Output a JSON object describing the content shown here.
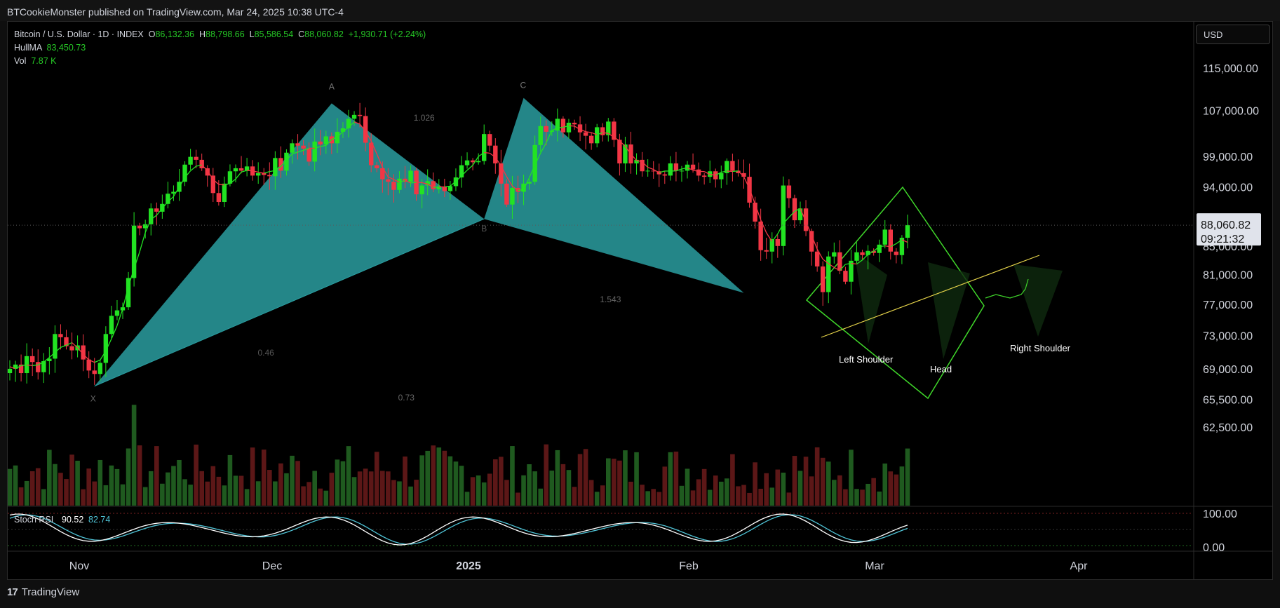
{
  "header": {
    "publisher_line": "BTCookieMonster published on TradingView.com, Mar 24, 2025 10:38 UTC-4"
  },
  "legend": {
    "symbol": "Bitcoin / U.S. Dollar · 1D · INDEX",
    "open_label": "O",
    "open": "86,132.36",
    "high_label": "H",
    "high": "88,798.66",
    "low_label": "L",
    "low": "85,586.54",
    "close_label": "C",
    "close": "88,060.82",
    "change": "+1,930.71 (+2.24%)",
    "hullma_label": "HullMA",
    "hullma": "83,450.73",
    "vol_label": "Vol",
    "vol": "7.87 K"
  },
  "currency": "USD",
  "price_badge": {
    "price": "88,060.82",
    "countdown": "09:21:32"
  },
  "stoch_rsi": {
    "label": "Stoch RSI",
    "k": "90.52",
    "d": "82.74",
    "levels": [
      "100.00",
      "0.00"
    ]
  },
  "footer": {
    "brand": "TradingView",
    "logo": "tradingview-logo-icon"
  },
  "colors": {
    "up": "#22e322",
    "down": "#f23645",
    "harmonic": "#2a9da0",
    "hs": "#3fd62a",
    "trendline": "#e6d44a",
    "rsi_k": "#ffffff",
    "rsi_d": "#4fc3d6"
  },
  "annotations": {
    "points": [
      "X",
      "A",
      "B",
      "C"
    ],
    "ratios": [
      "1.026",
      "0.46",
      "0.73",
      "1.543"
    ],
    "pattern_labels": [
      "Left Shoulder",
      "Head",
      "Right Shoulder"
    ]
  },
  "chart_data": {
    "type": "candlestick",
    "title": "",
    "y_axis_labels": [
      "115,000.00",
      "107,000.00",
      "99,000.00",
      "94,000.00",
      "88,000.00",
      "85,000.00",
      "81,000.00",
      "77,000.00",
      "73,000.00",
      "69,000.00",
      "65,500.00",
      "62,500.00"
    ],
    "x_axis_labels": [
      "Nov",
      "Dec",
      "2025",
      "Feb",
      "Mar",
      "Apr"
    ],
    "ylim": [
      61800,
      119000
    ],
    "close_series_approx": [
      69000,
      69500,
      68500,
      70500,
      69800,
      68600,
      69900,
      70200,
      73200,
      72800,
      71700,
      71200,
      71800,
      70100,
      68800,
      68400,
      69700,
      73200,
      75500,
      76200,
      76600,
      80500,
      88000,
      87600,
      88200,
      90600,
      90100,
      91300,
      92900,
      93200,
      94800,
      97600,
      98900,
      98400,
      97000,
      95800,
      93000,
      91600,
      94500,
      96500,
      97000,
      96600,
      97300,
      95800,
      96200,
      95900,
      95700,
      98700,
      96600,
      99600,
      101200,
      100800,
      100300,
      98100,
      101500,
      101000,
      102400,
      101200,
      103200,
      103800,
      105500,
      106200,
      106000,
      101300,
      97500,
      97000,
      95200,
      94800,
      93500,
      95300,
      94800,
      96600,
      92800,
      94200,
      94900,
      93600,
      94000,
      93300,
      94100,
      95500,
      97500,
      98300,
      98000,
      98200,
      102800,
      100800,
      97800,
      94500,
      91200,
      93800,
      93200,
      94500,
      94800,
      100900,
      104200,
      103200,
      103400,
      105500,
      103100,
      104800,
      104500,
      103100,
      102500,
      101200,
      104000,
      102600,
      105000,
      101800,
      97800,
      101000,
      97800,
      98400,
      96500,
      96600,
      96500,
      96000,
      95800,
      97800,
      96600,
      96600,
      97600,
      96800,
      95800,
      95600,
      96500,
      95200,
      96200,
      98200,
      96600,
      96200,
      95600,
      91500,
      88600,
      84400,
      84200,
      86000,
      85000,
      94200,
      92200,
      88800,
      90600,
      87200,
      84200,
      82100,
      78600,
      83500,
      84100,
      81500,
      80000,
      82900,
      84100,
      83700,
      84300,
      84000,
      85200,
      87400,
      84200,
      83700,
      86200,
      88060
    ],
    "harmonic_pattern": {
      "X": 67000,
      "A": 108300,
      "B": 89000,
      "C": 109300,
      "D": 78500,
      "ratios": {
        "XAB": 0.46,
        "ABC": 1.026,
        "BCD": 1.543,
        "XAD": 0.73
      }
    },
    "head_and_shoulders": {
      "left_shoulder": 78500,
      "head": 76600,
      "right_shoulder": 80000,
      "neckline": "rising"
    },
    "last_price": 88060.82
  }
}
